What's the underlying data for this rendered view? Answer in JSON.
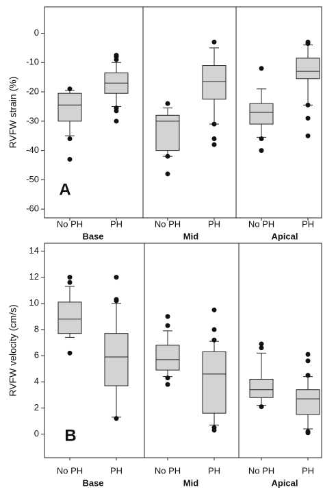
{
  "chart_data": [
    {
      "type": "box",
      "panel": "A",
      "y_label": "RVFW strain (%)",
      "categories": [
        "No PH",
        "PH",
        "No PH",
        "PH",
        "No PH",
        "PH"
      ],
      "groups": [
        "Base",
        "Mid",
        "Apical"
      ],
      "color": "#d3d3d3",
      "ylim": [
        -63,
        9
      ],
      "yticks": [
        -60,
        -50,
        -40,
        -30,
        -20,
        -10,
        0
      ],
      "boxes": [
        {
          "low": -35,
          "q1": -30,
          "median": -24.5,
          "q3": -20.5,
          "high": -19.5,
          "outliers": [
            -19,
            -36,
            -43
          ]
        },
        {
          "low": -25,
          "q1": -20.5,
          "median": -17,
          "q3": -13.5,
          "high": -10,
          "outliers": [
            -7.5,
            -8,
            -9,
            -25.5,
            -26.5,
            -30
          ]
        },
        {
          "low": -42,
          "q1": -40,
          "median": -30,
          "q3": -28,
          "high": -25.5,
          "outliers": [
            -24,
            -42,
            -48
          ]
        },
        {
          "low": -31,
          "q1": -22.5,
          "median": -16.5,
          "q3": -11,
          "high": -5,
          "outliers": [
            -3,
            -31,
            -36,
            -38
          ]
        },
        {
          "low": -35.5,
          "q1": -31,
          "median": -27,
          "q3": -24,
          "high": -19,
          "outliers": [
            -12,
            -36,
            -40
          ]
        },
        {
          "low": -24.5,
          "q1": -15.5,
          "median": -13,
          "q3": -8.5,
          "high": -4,
          "outliers": [
            -3,
            -3.5,
            -24.5,
            -29,
            -35
          ]
        }
      ]
    },
    {
      "type": "box",
      "panel": "B",
      "y_label": "RVFW velocity (cm/s)",
      "categories": [
        "No PH",
        "PH",
        "No PH",
        "PH",
        "No PH",
        "PH"
      ],
      "groups": [
        "Base",
        "Mid",
        "Apical"
      ],
      "color": "#d3d3d3",
      "ylim": [
        -1.8,
        14.6
      ],
      "yticks": [
        0,
        2,
        4,
        6,
        8,
        10,
        12,
        14
      ],
      "boxes": [
        {
          "low": 7.4,
          "q1": 7.7,
          "median": 8.8,
          "q3": 10.1,
          "high": 11.3,
          "outliers": [
            12,
            11.6,
            6.2
          ]
        },
        {
          "low": 1.3,
          "q1": 3.7,
          "median": 5.9,
          "q3": 7.7,
          "high": 10,
          "outliers": [
            12,
            10.3,
            10.2,
            1.2
          ]
        },
        {
          "low": 4.4,
          "q1": 4.9,
          "median": 5.7,
          "q3": 6.8,
          "high": 7.9,
          "outliers": [
            9,
            8.3,
            4.3,
            3.8
          ]
        },
        {
          "low": 0.7,
          "q1": 1.6,
          "median": 4.6,
          "q3": 6.3,
          "high": 7.1,
          "outliers": [
            9.5,
            8,
            7.2,
            0.5,
            0.3
          ]
        },
        {
          "low": 2.2,
          "q1": 2.8,
          "median": 3.4,
          "q3": 4.2,
          "high": 6.2,
          "outliers": [
            6.9,
            6.6,
            2.1
          ]
        },
        {
          "low": 0.4,
          "q1": 1.5,
          "median": 2.7,
          "q3": 3.4,
          "high": 4.4,
          "outliers": [
            6.1,
            5.6,
            4.5,
            0.2,
            0.1
          ]
        }
      ]
    }
  ]
}
